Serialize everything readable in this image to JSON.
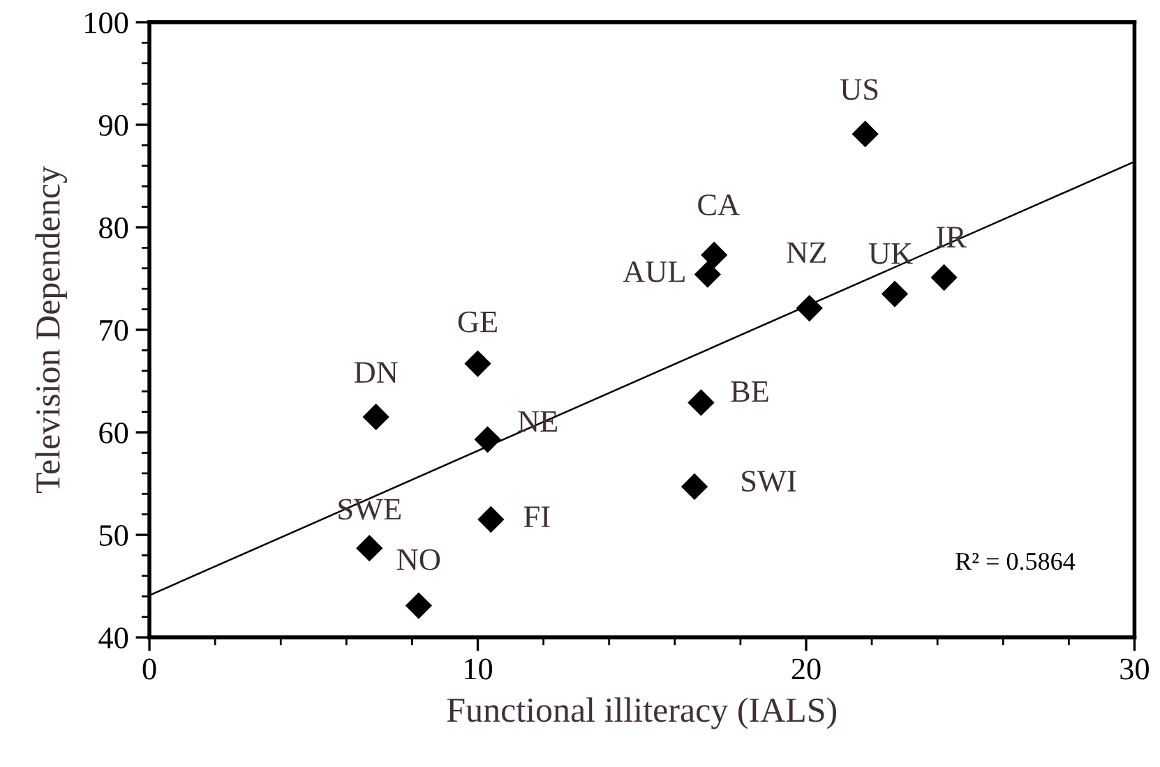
{
  "chart_data": {
    "type": "scatter",
    "xlabel": "Functional illiteracy (IALS)",
    "ylabel": "Television Dependency",
    "series": [
      {
        "color": "#000000",
        "marker": "diamond",
        "x": [
          6.7,
          8.2,
          6.9,
          10.0,
          10.3,
          10.4,
          21.8,
          17.2,
          17.0,
          20.1,
          22.7,
          24.2,
          16.8,
          16.6
        ],
        "values": [
          48.7,
          43.1,
          61.5,
          66.7,
          59.3,
          51.5,
          89.1,
          77.3,
          75.4,
          72.1,
          73.5,
          75.1,
          62.9,
          54.7
        ]
      },
      {
        "type": "line",
        "color": "#000000",
        "marker": "none",
        "line_style": "solid",
        "x": [
          0,
          30
        ],
        "values": [
          44.1,
          86.4
        ]
      }
    ],
    "annotations": [
      {
        "text": "SWE",
        "x": 6.7,
        "y": 48.7
      },
      {
        "text": "NO",
        "x": 8.2,
        "y": 43.1
      },
      {
        "text": "DN",
        "x": 6.9,
        "y": 61.5
      },
      {
        "text": "GE",
        "x": 10.0,
        "y": 66.7
      },
      {
        "text": "NE",
        "x": 10.3,
        "y": 59.3
      },
      {
        "text": "FI",
        "x": 10.4,
        "y": 51.5
      },
      {
        "text": "US",
        "x": 21.8,
        "y": 89.1
      },
      {
        "text": "CA",
        "x": 17.2,
        "y": 77.3
      },
      {
        "text": "AUL",
        "x": 17.0,
        "y": 75.4
      },
      {
        "text": "NZ",
        "x": 20.1,
        "y": 72.1
      },
      {
        "text": "UK",
        "x": 22.7,
        "y": 73.5
      },
      {
        "text": "IR",
        "x": 24.2,
        "y": 75.1
      },
      {
        "text": "BE",
        "x": 16.8,
        "y": 62.9
      },
      {
        "text": "SWI",
        "x": 16.6,
        "y": 54.7
      },
      "R² = 0.5864"
    ],
    "xlim": [
      0,
      30
    ],
    "xticks": [
      0,
      10,
      20,
      30
    ],
    "ylim": [
      40,
      100
    ],
    "yticks": [
      40,
      50,
      60,
      70,
      80,
      90,
      100
    ],
    "grid": false
  }
}
